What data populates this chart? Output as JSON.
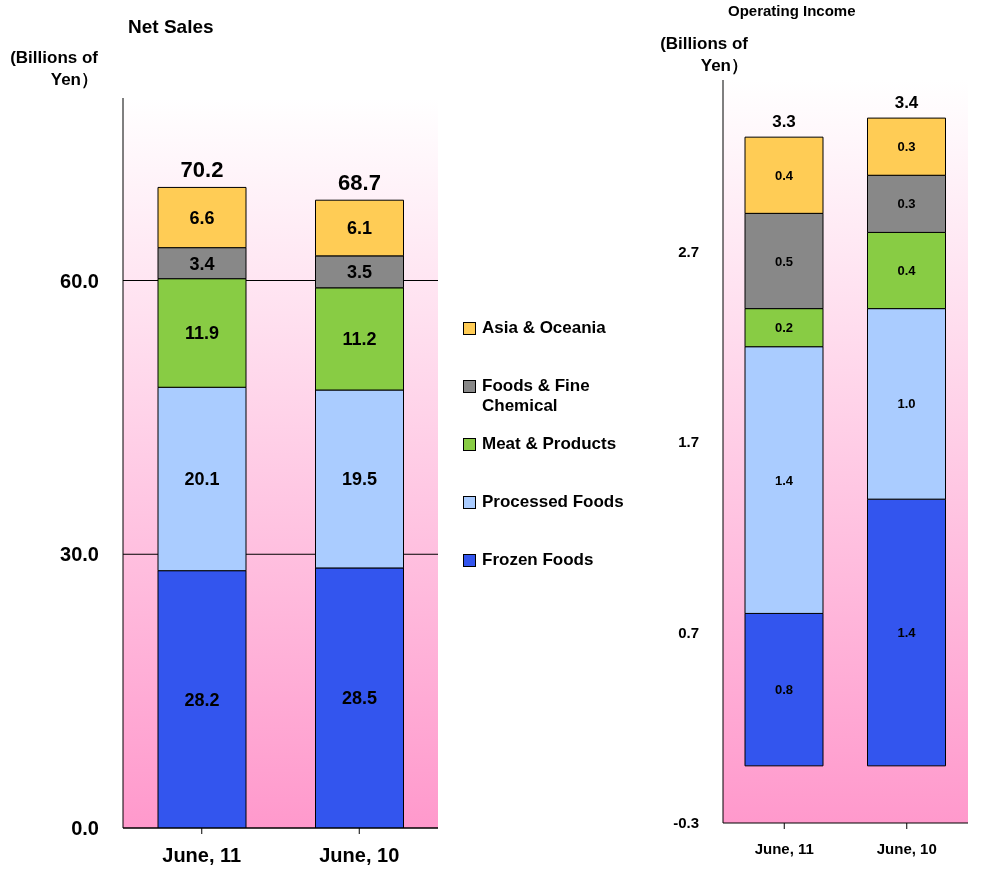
{
  "chart_data": [
    {
      "type": "bar",
      "title": "Net Sales",
      "ylabel": "(Billions of Yen）",
      "categories": [
        "June, 11",
        "June, 10"
      ],
      "stacked": true,
      "data_labels": true,
      "totals": [
        "70.2",
        "68.7"
      ],
      "ylim": [
        0,
        80
      ],
      "yticks": [
        {
          "value": 0,
          "label": "0.0"
        },
        {
          "value": 30,
          "label": "30.0"
        },
        {
          "value": 60,
          "label": "60.0"
        }
      ],
      "grid": "y",
      "legend": "right",
      "series": [
        {
          "name": "Frozen Foods",
          "color": "#3355ee",
          "values": [
            28.2,
            28.5
          ]
        },
        {
          "name": "Processed Foods",
          "color": "#aaccff",
          "values": [
            20.1,
            19.5
          ]
        },
        {
          "name": "Meat & Products",
          "color": "#88cc44",
          "values": [
            11.9,
            11.2
          ]
        },
        {
          "name": "Foods & Fine Chemical",
          "color": "#888888",
          "values": [
            3.4,
            3.5
          ]
        },
        {
          "name": "Asia & Oceania",
          "color": "#ffcc55",
          "values": [
            6.6,
            6.1
          ]
        }
      ]
    },
    {
      "type": "bar",
      "title": "Operating Income",
      "ylabel": "(Billions of Yen）",
      "categories": [
        "June, 11",
        "June, 10"
      ],
      "stacked": true,
      "totals": [
        "3.3",
        "3.4"
      ],
      "ylim": [
        -0.3,
        3.6
      ],
      "yticks": [
        -0.3,
        0.7,
        1.7,
        2.7
      ],
      "legend": false,
      "series": [
        {
          "color": "#3355ee",
          "values": [
            0.8,
            1.4
          ],
          "value_labels": [
            "0.8",
            "1.4"
          ]
        },
        {
          "color": "#aaccff",
          "values": [
            1.4,
            1.0
          ],
          "value_labels": [
            "1.4",
            "1.0"
          ]
        },
        {
          "color": "#88cc44",
          "values": [
            0.2,
            0.4
          ],
          "value_labels": [
            "0.2",
            "0.4"
          ]
        },
        {
          "color": "#888888",
          "values": [
            0.5,
            0.3
          ],
          "value_labels": [
            "0.5",
            "0.3"
          ]
        },
        {
          "color": "#ffcc55",
          "values": [
            0.4,
            0.3
          ],
          "value_labels": [
            "0.4",
            "0.3"
          ]
        }
      ]
    }
  ]
}
